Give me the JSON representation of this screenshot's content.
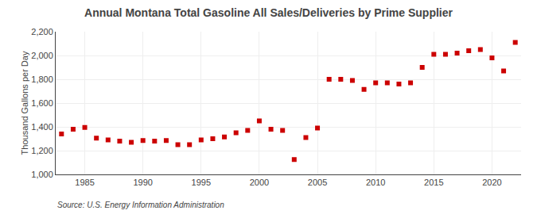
{
  "chart_data": {
    "type": "scatter",
    "title": "Annual Montana Total Gasoline All Sales/Deliveries by Prime Supplier",
    "ylabel": "Thousand Gallons per Day",
    "source": "Source: U.S. Energy Information Administration",
    "color": "#cc0000",
    "marker": "square",
    "grid": true,
    "xlim": [
      1982.5,
      2022.5
    ],
    "xticks": [
      1985,
      1990,
      1995,
      2000,
      2005,
      2010,
      2015,
      2020
    ],
    "ylim": [
      1000,
      2200
    ],
    "yticks": [
      {
        "value": 1000,
        "label": "1,000"
      },
      {
        "value": 1200,
        "label": "1,200"
      },
      {
        "value": 1400,
        "label": "1,400"
      },
      {
        "value": 1600,
        "label": "1,600"
      },
      {
        "value": 1800,
        "label": "1,800"
      },
      {
        "value": 2000,
        "label": "2,000"
      },
      {
        "value": 2200,
        "label": "2,200"
      }
    ],
    "x": [
      1983,
      1984,
      1985,
      1986,
      1987,
      1988,
      1989,
      1990,
      1991,
      1992,
      1993,
      1994,
      1995,
      1996,
      1997,
      1998,
      1999,
      2000,
      2001,
      2002,
      2003,
      2004,
      2005,
      2006,
      2007,
      2008,
      2009,
      2010,
      2011,
      2012,
      2013,
      2014,
      2015,
      2016,
      2017,
      2018,
      2019,
      2020,
      2021,
      2022
    ],
    "values": [
      1340,
      1380,
      1395,
      1305,
      1290,
      1280,
      1270,
      1285,
      1280,
      1285,
      1250,
      1250,
      1290,
      1300,
      1315,
      1350,
      1370,
      1450,
      1380,
      1370,
      1125,
      1310,
      1390,
      1800,
      1800,
      1790,
      1715,
      1770,
      1770,
      1760,
      1770,
      1900,
      2010,
      2010,
      2020,
      2040,
      2050,
      1980,
      1870,
      2110
    ]
  }
}
